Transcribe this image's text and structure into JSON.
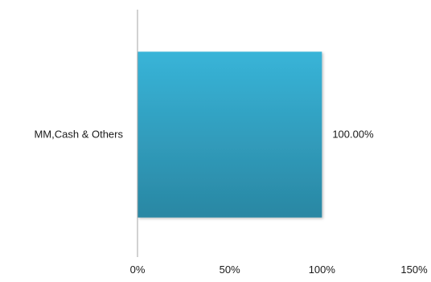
{
  "chart_data": {
    "type": "bar",
    "orientation": "horizontal",
    "categories": [
      "MM,Cash & Others"
    ],
    "series": [
      {
        "values": [
          100.0
        ]
      }
    ],
    "data_labels": [
      "100.00%"
    ],
    "x_ticks": [
      "0%",
      "50%",
      "100%",
      "150%"
    ],
    "xlim": [
      0,
      150
    ],
    "grid": false,
    "legend": "none",
    "colors": {
      "bar_top": "#38b4d8",
      "bar_bottom": "#2a87a3",
      "axis": "#a6a6a6"
    }
  }
}
